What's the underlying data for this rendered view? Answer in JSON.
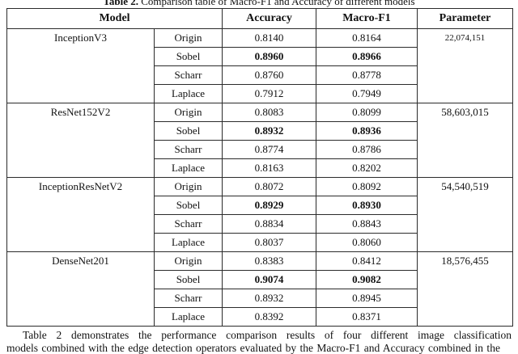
{
  "caption": {
    "label": "Table 2.",
    "text": " Comparison table of Macro-F1 and Accuracy of different models"
  },
  "table": {
    "headers": [
      "Model",
      "Accuracy",
      "Macro-F1",
      "Parameter"
    ],
    "groups": [
      {
        "model": "InceptionV3",
        "parameter": "22,074,151",
        "rows": [
          {
            "operator": "Origin",
            "accuracy": "0.8140",
            "macro_f1": "0.8164",
            "bold": false
          },
          {
            "operator": "Sobel",
            "accuracy": "0.8960",
            "macro_f1": "0.8966",
            "bold": true
          },
          {
            "operator": "Scharr",
            "accuracy": "0.8760",
            "macro_f1": "0.8778",
            "bold": false
          },
          {
            "operator": "Laplace",
            "accuracy": "0.7912",
            "macro_f1": "0.7949",
            "bold": false
          }
        ]
      },
      {
        "model": "ResNet152V2",
        "parameter": "58,603,015",
        "rows": [
          {
            "operator": "Origin",
            "accuracy": "0.8083",
            "macro_f1": "0.8099",
            "bold": false
          },
          {
            "operator": "Sobel",
            "accuracy": "0.8932",
            "macro_f1": "0.8936",
            "bold": true
          },
          {
            "operator": "Scharr",
            "accuracy": "0.8774",
            "macro_f1": "0.8786",
            "bold": false
          },
          {
            "operator": "Laplace",
            "accuracy": "0.8163",
            "macro_f1": "0.8202",
            "bold": false
          }
        ]
      },
      {
        "model": "InceptionResNetV2",
        "parameter": "54,540,519",
        "rows": [
          {
            "operator": "Origin",
            "accuracy": "0.8072",
            "macro_f1": "0.8092",
            "bold": false
          },
          {
            "operator": "Sobel",
            "accuracy": "0.8929",
            "macro_f1": "0.8930",
            "bold": true
          },
          {
            "operator": "Scharr",
            "accuracy": "0.8834",
            "macro_f1": "0.8843",
            "bold": false
          },
          {
            "operator": "Laplace",
            "accuracy": "0.8037",
            "macro_f1": "0.8060",
            "bold": false
          }
        ]
      },
      {
        "model": "DenseNet201",
        "parameter": "18,576,455",
        "rows": [
          {
            "operator": "Origin",
            "accuracy": "0.8383",
            "macro_f1": "0.8412",
            "bold": false
          },
          {
            "operator": "Sobel",
            "accuracy": "0.9074",
            "macro_f1": "0.9082",
            "bold": true
          },
          {
            "operator": "Scharr",
            "accuracy": "0.8932",
            "macro_f1": "0.8945",
            "bold": false
          },
          {
            "operator": "Laplace",
            "accuracy": "0.8392",
            "macro_f1": "0.8371",
            "bold": false
          }
        ]
      }
    ]
  },
  "paragraph": {
    "line1": "Table 2 demonstrates the performance comparison results of four different image classification",
    "line2": "models combined with the edge detection operators evaluated by the Macro-F1 and Accuracy combined in the"
  }
}
